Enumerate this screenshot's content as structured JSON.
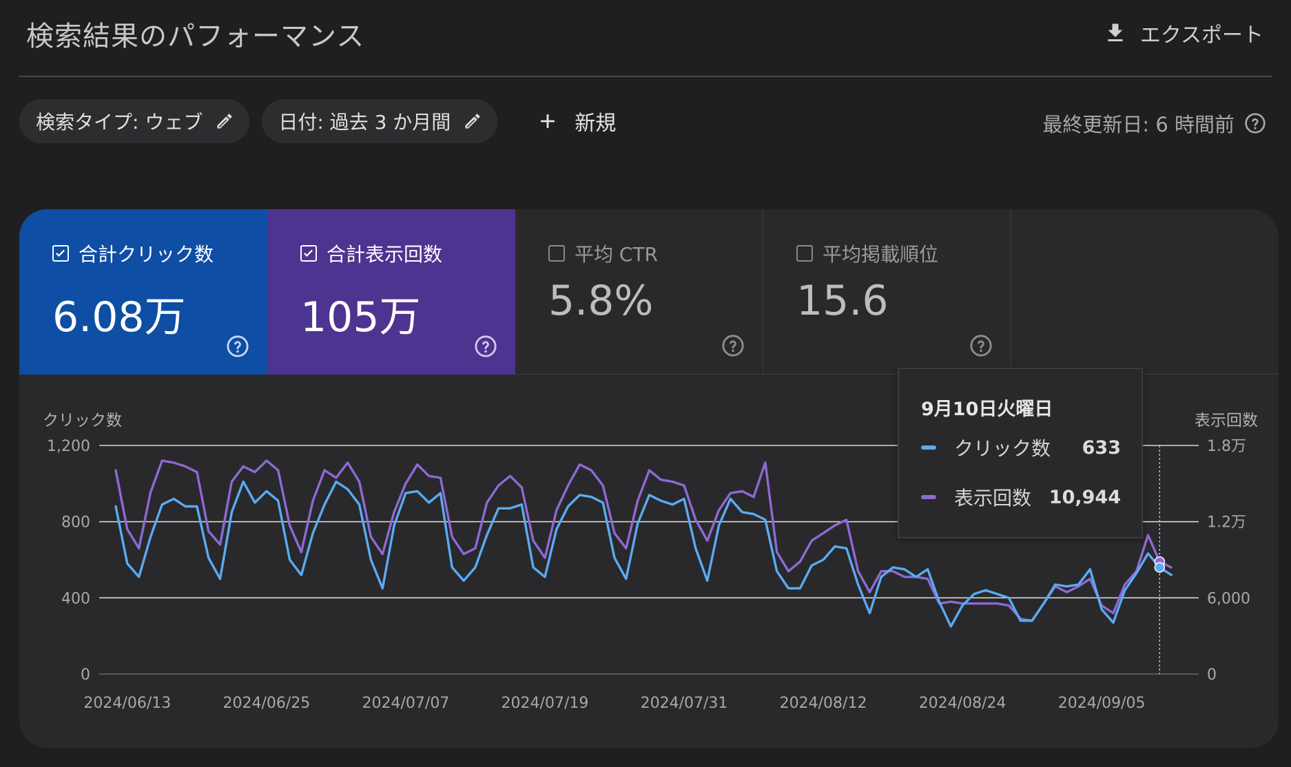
{
  "header": {
    "title": "検索結果のパフォーマンス",
    "export_label": "エクスポート"
  },
  "filters": {
    "search_type": "検索タイプ: ウェブ",
    "date": "日付: 過去 3 か月間",
    "new_label": "新規",
    "last_updated": "最終更新日: 6 時間前"
  },
  "metrics": {
    "clicks": {
      "label": "合計クリック数",
      "value": "6.08万",
      "checked": true
    },
    "impressions": {
      "label": "合計表示回数",
      "value": "105万",
      "checked": true
    },
    "ctr": {
      "label": "平均 CTR",
      "value": "5.8%",
      "checked": false
    },
    "position": {
      "label": "平均掲載順位",
      "value": "15.6",
      "checked": false
    }
  },
  "colors": {
    "clicks_card": "#0e4ea4",
    "impressions_card": "#4d3490",
    "clicks_line": "#5aabf2",
    "impressions_line": "#8e69d6"
  },
  "tooltip": {
    "date": "9月10日火曜日",
    "clicks_label": "クリック数",
    "clicks_value": "633",
    "impressions_label": "表示回数",
    "impressions_value": "10,944"
  },
  "chart_data": {
    "type": "line",
    "ylabel_left": "クリック数",
    "ylabel_right": "表示回数",
    "y_left_ticks": [
      "0",
      "400",
      "800",
      "1,200"
    ],
    "y_right_ticks": [
      "0",
      "6,000",
      "1.2万",
      "1.8万"
    ],
    "ylim_left": [
      0,
      1200
    ],
    "ylim_right": [
      0,
      18000
    ],
    "x_tick_labels": [
      "2024/06/13",
      "2024/06/25",
      "2024/07/07",
      "2024/07/19",
      "2024/07/31",
      "2024/08/12",
      "2024/08/24",
      "2024/09/05"
    ],
    "x_start": "2024/06/12",
    "x_end": "2024/09/12",
    "highlight_date": "2024/09/10",
    "grid": true,
    "series": [
      {
        "name": "クリック数",
        "axis": "left",
        "values": [
          880,
          580,
          510,
          720,
          890,
          920,
          880,
          880,
          610,
          500,
          850,
          1010,
          900,
          960,
          910,
          600,
          520,
          740,
          890,
          1010,
          970,
          890,
          600,
          450,
          780,
          950,
          960,
          900,
          950,
          560,
          490,
          560,
          730,
          870,
          870,
          890,
          560,
          510,
          760,
          880,
          940,
          930,
          900,
          610,
          500,
          790,
          940,
          910,
          890,
          920,
          660,
          490,
          780,
          920,
          850,
          840,
          810,
          540,
          450,
          450,
          570,
          600,
          670,
          660,
          470,
          320,
          510,
          560,
          550,
          510,
          550,
          380,
          250,
          360,
          420,
          440,
          420,
          400,
          280,
          280,
          370,
          470,
          460,
          470,
          550,
          340,
          270,
          440,
          530,
          633,
          560,
          520
        ]
      },
      {
        "name": "表示回数",
        "axis": "right",
        "values": [
          16050,
          11400,
          9900,
          14300,
          16800,
          16650,
          16350,
          15900,
          11250,
          10200,
          15150,
          16350,
          15900,
          16800,
          16050,
          11700,
          9600,
          13650,
          16050,
          15450,
          16650,
          15150,
          10800,
          9450,
          12750,
          15000,
          16500,
          15600,
          15450,
          10800,
          9450,
          9900,
          13500,
          14850,
          15600,
          14700,
          10500,
          9150,
          12900,
          14850,
          16500,
          16050,
          14850,
          11100,
          9900,
          13650,
          16050,
          15300,
          15150,
          14850,
          12150,
          10500,
          12900,
          14250,
          14400,
          13950,
          16650,
          9600,
          8100,
          8850,
          10500,
          11100,
          11700,
          12150,
          8100,
          6450,
          8100,
          8100,
          7650,
          7650,
          7500,
          5550,
          5700,
          5550,
          5550,
          5550,
          5550,
          5400,
          4350,
          4200,
          5550,
          6900,
          6450,
          6900,
          7500,
          5400,
          4800,
          7050,
          8100,
          10944,
          8850,
          8400
        ]
      }
    ]
  }
}
